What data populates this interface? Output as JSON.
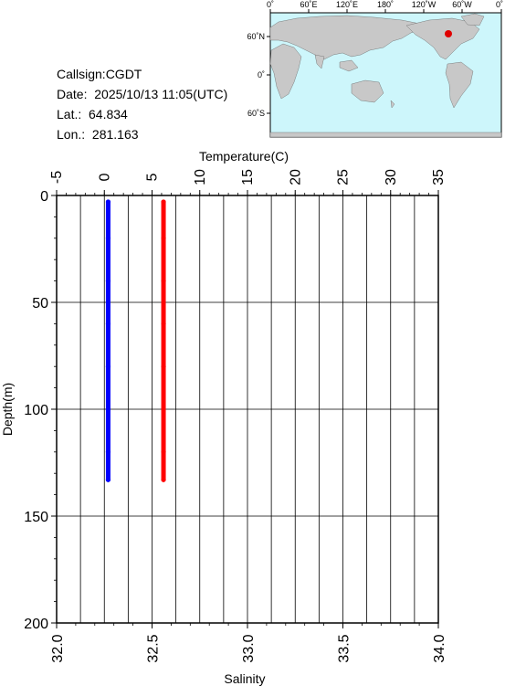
{
  "station": {
    "callsign": "Callsign:CGDT",
    "date": "Date:  2025/10/13 11:05(UTC)",
    "lat": "Lat.:  64.834",
    "lon": "Lon.:  281.163"
  },
  "map": {
    "top_labels": [
      "0˚",
      "60˚E",
      "120˚E",
      "180˚",
      "120˚W",
      "60˚W",
      "0˚"
    ],
    "left_labels": [
      "60˚N",
      "0˚",
      "60˚S"
    ],
    "colors": {
      "ocean": "#cdf6fb",
      "land": "#c8c8c8",
      "marker": "#e00000"
    }
  },
  "chart_data": {
    "type": "line",
    "title": "",
    "top_axis": {
      "label": "Temperature(C)",
      "range": [
        -5,
        35
      ],
      "ticks": [
        "-5",
        "0",
        "5",
        "10",
        "15",
        "20",
        "25",
        "30",
        "35"
      ],
      "tick_values": [
        -5,
        0,
        5,
        10,
        15,
        20,
        25,
        30,
        35
      ]
    },
    "bottom_axis": {
      "label": "Salinity",
      "range": [
        32.0,
        34.0
      ],
      "ticks": [
        "32.0",
        "32.5",
        "33.0",
        "33.5",
        "34.0"
      ],
      "tick_values": [
        32.0,
        32.5,
        33.0,
        33.5,
        34.0
      ]
    },
    "y_axis": {
      "label": "Depth(m)",
      "range": [
        0,
        200
      ],
      "inverted": true,
      "ticks": [
        "0",
        "50",
        "100",
        "150",
        "200"
      ],
      "tick_values": [
        0,
        50,
        100,
        150,
        200
      ]
    },
    "grid": true,
    "series": [
      {
        "quantity": "temperature",
        "axis": "top",
        "color": "#ff0000",
        "depth": [
          3,
          20,
          40,
          60,
          80,
          100,
          120,
          133
        ],
        "values": [
          6.2,
          6.2,
          6.2,
          6.2,
          6.2,
          6.2,
          6.2,
          6.2
        ]
      },
      {
        "quantity": "salinity",
        "axis": "bottom",
        "color": "#0000ff",
        "depth": [
          3,
          20,
          40,
          60,
          80,
          100,
          120,
          133
        ],
        "values": [
          32.27,
          32.27,
          32.27,
          32.27,
          32.27,
          32.27,
          32.27,
          32.27
        ]
      }
    ]
  }
}
